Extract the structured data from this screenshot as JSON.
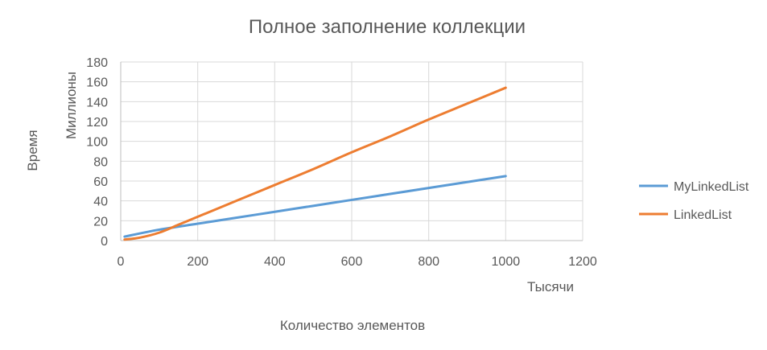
{
  "chart_data": {
    "type": "line",
    "title": "Полное заполнение коллекции",
    "xlabel": "Количество элементов",
    "x_display_unit": "Тысячи",
    "ylabel": "Время",
    "y_display_unit": "Миллионы",
    "xlim": [
      0,
      1200
    ],
    "ylim": [
      0,
      180
    ],
    "x_ticks": [
      0,
      200,
      400,
      600,
      800,
      1000,
      1200
    ],
    "y_ticks": [
      0,
      20,
      40,
      60,
      80,
      100,
      120,
      140,
      160,
      180
    ],
    "grid": true,
    "legend_position": "right",
    "series": [
      {
        "name": "MyLinkedList",
        "color": "#5b9bd5",
        "x": [
          10,
          100,
          200,
          300,
          400,
          500,
          600,
          700,
          800,
          900,
          1000
        ],
        "y": [
          4,
          11,
          17,
          23,
          29,
          35,
          41,
          47,
          53,
          59,
          65
        ]
      },
      {
        "name": "LinkedList",
        "color": "#ed7d31",
        "x": [
          10,
          50,
          100,
          150,
          200,
          300,
          400,
          500,
          600,
          700,
          800,
          900,
          1000
        ],
        "y": [
          1,
          3,
          8,
          16,
          24,
          40,
          56,
          72,
          89,
          105,
          122,
          138,
          154
        ]
      }
    ]
  }
}
